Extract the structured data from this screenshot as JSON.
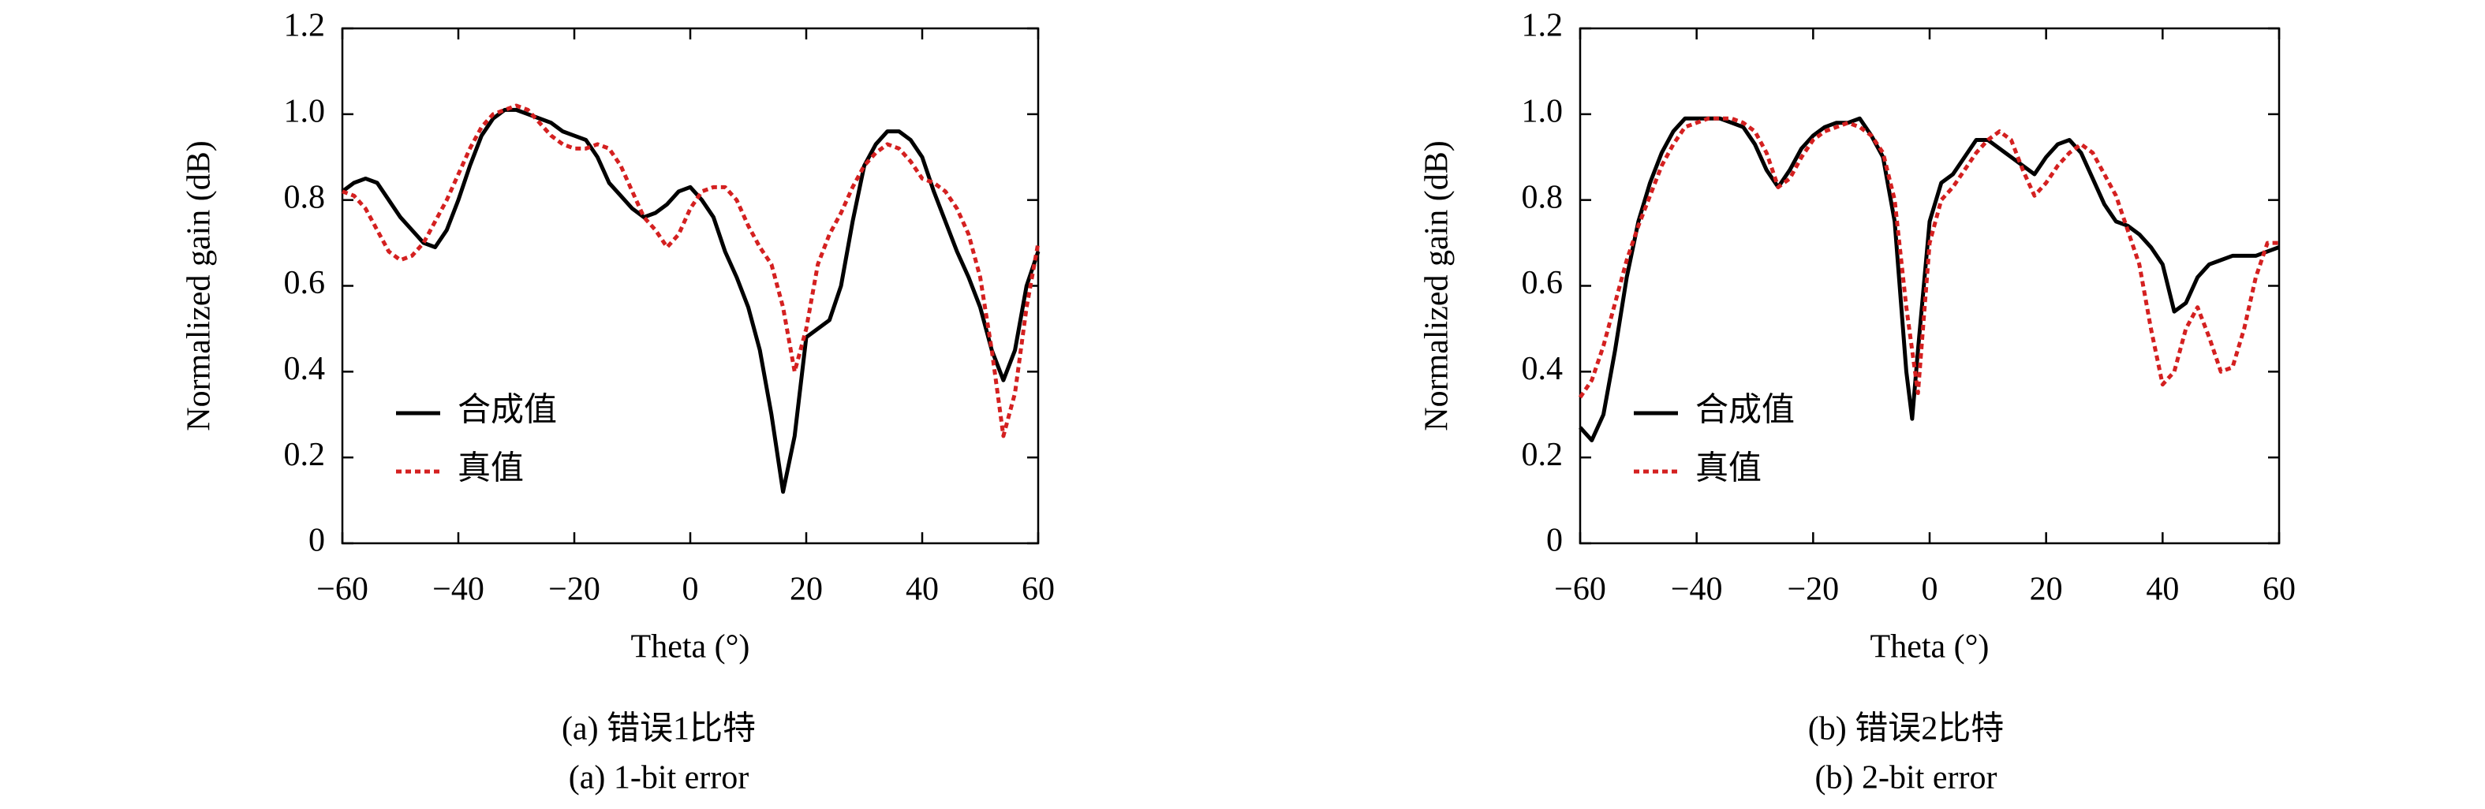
{
  "chart_data": [
    {
      "type": "line",
      "x_label": "Theta (°)",
      "y_label": "Normalized gain (dB)",
      "caption": [
        "(a) 错误1比特",
        "(a) 1-bit error"
      ],
      "x": [
        -60,
        -58,
        -56,
        -54,
        -52,
        -50,
        -48,
        -46,
        -44,
        -42,
        -40,
        -38,
        -36,
        -34,
        -32,
        -30,
        -28,
        -26,
        -24,
        -22,
        -20,
        -18,
        -16,
        -14,
        -12,
        -10,
        -8,
        -6,
        -4,
        -2,
        0,
        2,
        4,
        6,
        8,
        10,
        12,
        14,
        16,
        18,
        20,
        22,
        24,
        26,
        28,
        30,
        32,
        34,
        36,
        38,
        40,
        42,
        44,
        46,
        48,
        50,
        52,
        54,
        56,
        58,
        60
      ],
      "xlim": [
        -60,
        60
      ],
      "xticks": [
        {
          "value": -60,
          "label": "−60"
        },
        {
          "value": -40,
          "label": "−40"
        },
        {
          "value": -20,
          "label": "−20"
        },
        0,
        20,
        40,
        60
      ],
      "ylim": [
        0,
        1.2
      ],
      "yticks": [
        0,
        0.2,
        0.4,
        0.6,
        0.8,
        {
          "value": 1,
          "label": "1.0"
        },
        1.2
      ],
      "legend": "center left",
      "series": [
        {
          "name": "合成值",
          "color": "#000000",
          "style": "solid",
          "values": [
            0.82,
            0.84,
            0.85,
            0.84,
            0.8,
            0.76,
            0.73,
            0.7,
            0.69,
            0.73,
            0.8,
            0.88,
            0.95,
            0.99,
            1.01,
            1.01,
            1.0,
            0.99,
            0.98,
            0.96,
            0.95,
            0.94,
            0.9,
            0.84,
            0.81,
            0.78,
            0.76,
            0.77,
            0.79,
            0.82,
            0.83,
            0.8,
            0.76,
            0.68,
            0.62,
            0.55,
            0.45,
            0.3,
            0.12,
            0.25,
            0.48,
            0.5,
            0.52,
            0.6,
            0.75,
            0.88,
            0.93,
            0.96,
            0.96,
            0.94,
            0.9,
            0.82,
            0.75,
            0.68,
            0.62,
            0.55,
            0.45,
            0.38,
            0.45,
            0.6,
            0.68
          ]
        },
        {
          "name": "真值",
          "color": "#d42020",
          "style": "dotted",
          "values": [
            0.82,
            0.81,
            0.78,
            0.73,
            0.68,
            0.66,
            0.67,
            0.7,
            0.75,
            0.8,
            0.86,
            0.92,
            0.97,
            1.0,
            1.01,
            1.02,
            1.01,
            0.98,
            0.95,
            0.93,
            0.92,
            0.92,
            0.93,
            0.92,
            0.88,
            0.82,
            0.76,
            0.73,
            0.69,
            0.72,
            0.78,
            0.82,
            0.83,
            0.83,
            0.8,
            0.74,
            0.69,
            0.65,
            0.55,
            0.4,
            0.5,
            0.65,
            0.72,
            0.77,
            0.83,
            0.88,
            0.91,
            0.93,
            0.92,
            0.89,
            0.85,
            0.84,
            0.82,
            0.78,
            0.72,
            0.62,
            0.45,
            0.25,
            0.35,
            0.55,
            0.7
          ]
        }
      ]
    },
    {
      "type": "line",
      "x_label": "Theta (°)",
      "y_label": "Normalized gain (dB)",
      "caption": [
        "(b) 错误2比特",
        "(b) 2-bit error"
      ],
      "x": [
        -60,
        -58,
        -56,
        -54,
        -52,
        -50,
        -48,
        -46,
        -44,
        -42,
        -40,
        -38,
        -36,
        -34,
        -32,
        -30,
        -28,
        -26,
        -24,
        -22,
        -20,
        -18,
        -16,
        -14,
        -12,
        -10,
        -8,
        -6,
        -4,
        -3,
        -2,
        0,
        2,
        4,
        6,
        8,
        10,
        12,
        14,
        16,
        18,
        20,
        22,
        24,
        26,
        28,
        30,
        32,
        34,
        36,
        38,
        40,
        42,
        44,
        46,
        48,
        50,
        52,
        54,
        56,
        58,
        60
      ],
      "xlim": [
        -60,
        60
      ],
      "xticks": [
        {
          "value": -60,
          "label": "−60"
        },
        {
          "value": -40,
          "label": "−40"
        },
        {
          "value": -20,
          "label": "−20"
        },
        0,
        20,
        40,
        60
      ],
      "ylim": [
        0,
        1.2
      ],
      "yticks": [
        0,
        0.2,
        0.4,
        0.6,
        0.8,
        {
          "value": 1,
          "label": "1.0"
        },
        1.2
      ],
      "legend": "center left",
      "series": [
        {
          "name": "合成值",
          "color": "#000000",
          "style": "solid",
          "values": [
            0.27,
            0.24,
            0.3,
            0.45,
            0.62,
            0.75,
            0.84,
            0.91,
            0.96,
            0.99,
            0.99,
            0.99,
            0.99,
            0.98,
            0.97,
            0.93,
            0.87,
            0.83,
            0.87,
            0.92,
            0.95,
            0.97,
            0.98,
            0.98,
            0.99,
            0.95,
            0.9,
            0.75,
            0.4,
            0.29,
            0.45,
            0.75,
            0.84,
            0.86,
            0.9,
            0.94,
            0.94,
            0.92,
            0.9,
            0.88,
            0.86,
            0.9,
            0.93,
            0.94,
            0.91,
            0.85,
            0.79,
            0.75,
            0.74,
            0.72,
            0.69,
            0.65,
            0.54,
            0.56,
            0.62,
            0.65,
            0.66,
            0.67,
            0.67,
            0.67,
            0.68,
            0.69
          ]
        },
        {
          "name": "真值",
          "color": "#d42020",
          "style": "dotted",
          "values": [
            0.34,
            0.38,
            0.46,
            0.56,
            0.66,
            0.74,
            0.81,
            0.88,
            0.93,
            0.97,
            0.98,
            0.99,
            0.99,
            0.99,
            0.98,
            0.96,
            0.91,
            0.83,
            0.85,
            0.9,
            0.94,
            0.96,
            0.97,
            0.98,
            0.97,
            0.95,
            0.91,
            0.8,
            0.55,
            0.45,
            0.35,
            0.7,
            0.8,
            0.83,
            0.87,
            0.91,
            0.94,
            0.96,
            0.94,
            0.87,
            0.81,
            0.84,
            0.88,
            0.91,
            0.93,
            0.91,
            0.86,
            0.81,
            0.73,
            0.65,
            0.5,
            0.37,
            0.4,
            0.5,
            0.55,
            0.48,
            0.4,
            0.41,
            0.5,
            0.62,
            0.7,
            0.7
          ]
        }
      ]
    }
  ]
}
